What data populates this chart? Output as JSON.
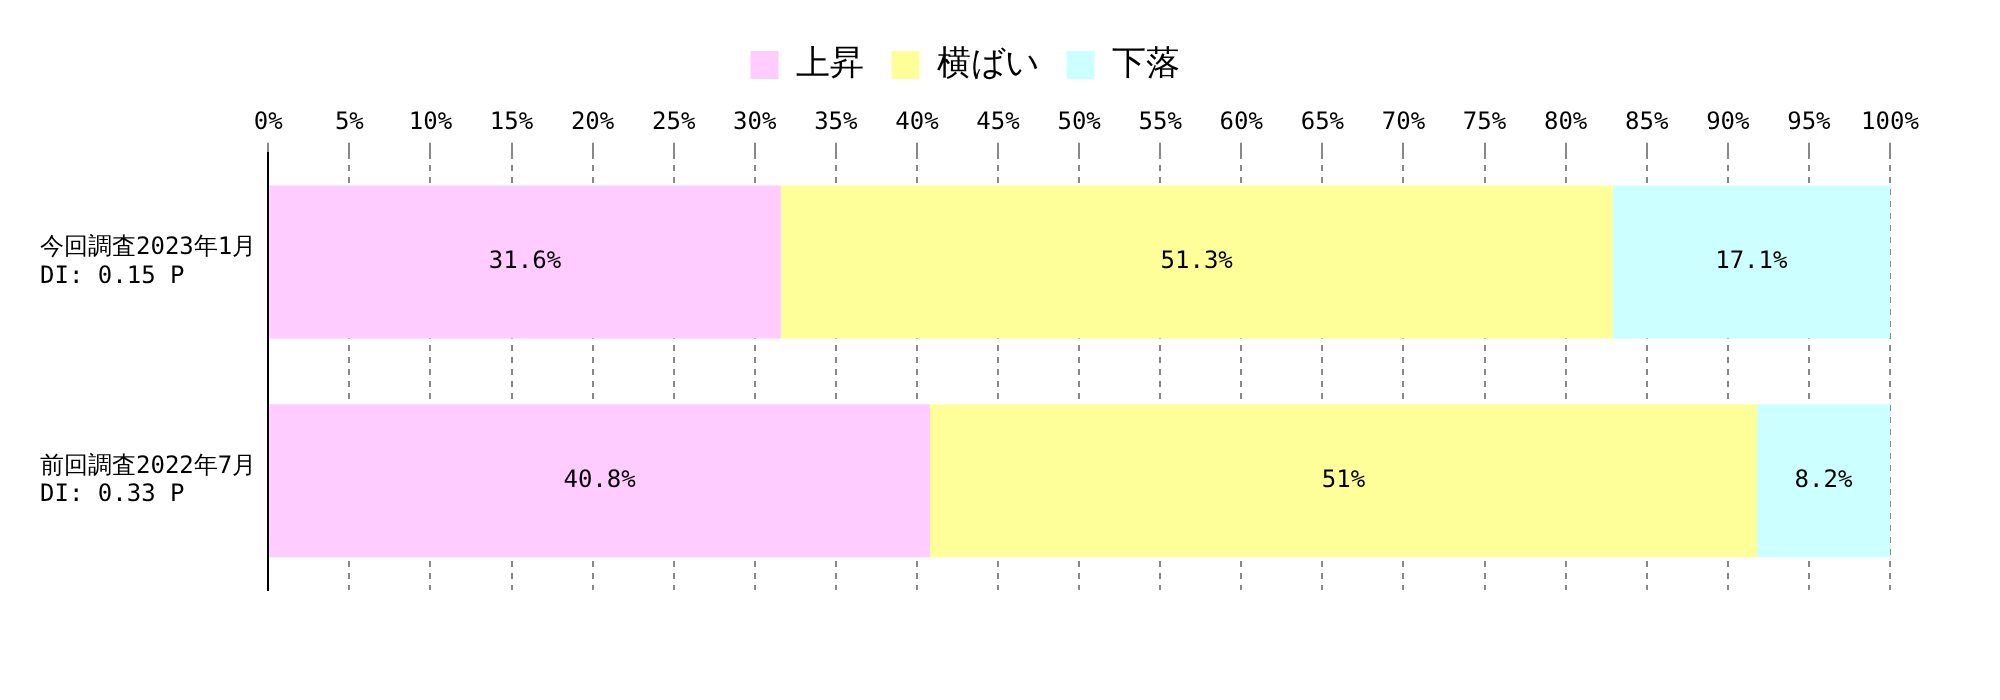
{
  "chart_data": {
    "type": "bar",
    "orientation": "horizontal",
    "stacked": true,
    "categories": [
      "今回調査2023年1月\nDI: 0.15 P",
      "前回調査2022年7月\nDI: 0.33 P"
    ],
    "series": [
      {
        "name": "上昇",
        "color": "#ffccff",
        "values": [
          31.6,
          40.8
        ]
      },
      {
        "name": "横ばい",
        "color": "#ffff99",
        "values": [
          51.3,
          51
        ]
      },
      {
        "name": "下落",
        "color": "#ccffff",
        "values": [
          17.1,
          8.2
        ]
      }
    ],
    "value_labels": [
      [
        "31.6%",
        "40.8%"
      ],
      [
        "51.3%",
        "51%"
      ],
      [
        "17.1%",
        "8.2%"
      ]
    ],
    "xlim": [
      0,
      100
    ],
    "xticks": [
      {
        "value": 0,
        "label": "0%"
      },
      {
        "value": 5,
        "label": "5%"
      },
      {
        "value": 10,
        "label": "10%"
      },
      {
        "value": 15,
        "label": "15%"
      },
      {
        "value": 20,
        "label": "20%"
      },
      {
        "value": 25,
        "label": "25%"
      },
      {
        "value": 30,
        "label": "30%"
      },
      {
        "value": 35,
        "label": "35%"
      },
      {
        "value": 40,
        "label": "40%"
      },
      {
        "value": 45,
        "label": "45%"
      },
      {
        "value": 50,
        "label": "50%"
      },
      {
        "value": 55,
        "label": "55%"
      },
      {
        "value": 60,
        "label": "60%"
      },
      {
        "value": 65,
        "label": "65%"
      },
      {
        "value": 70,
        "label": "70%"
      },
      {
        "value": 75,
        "label": "75%"
      },
      {
        "value": 80,
        "label": "80%"
      },
      {
        "value": 85,
        "label": "85%"
      },
      {
        "value": 90,
        "label": "90%"
      },
      {
        "value": 95,
        "label": "95%"
      },
      {
        "value": 100,
        "label": "100%"
      }
    ],
    "grid": "x",
    "legend": "top"
  }
}
